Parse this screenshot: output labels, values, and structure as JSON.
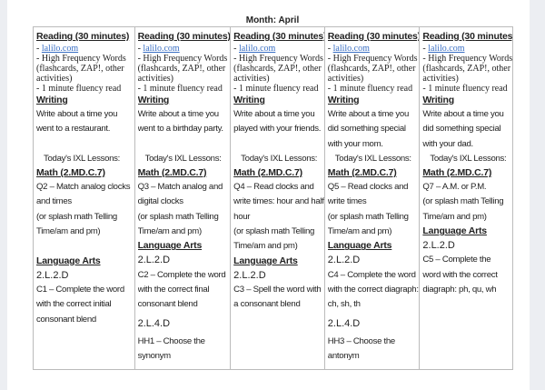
{
  "title": "Month: April",
  "columns": [
    {
      "blocks": [
        {
          "t": "Reading (30 minutes)",
          "c": "h"
        },
        {
          "t": "lalilo.com",
          "c": "link"
        },
        {
          "t": "-  High Frequency Words",
          "c": "serif"
        },
        {
          "t": "(flashcards, ZAP!, other",
          "c": "serif"
        },
        {
          "t": "activities)",
          "c": "serif"
        },
        {
          "t": "- 1 minute fluency read",
          "c": "serif"
        },
        {
          "t": "Writing",
          "c": "h"
        },
        {
          "t": "Write about a time you",
          "c": "hw"
        },
        {
          "t": "went to a restaurant.",
          "c": "hw"
        },
        {
          "t": "",
          "c": "blank"
        },
        {
          "t": "Today's IXL Lessons:",
          "c": "ixl"
        },
        {
          "t": "Math (2.MD.C.7)",
          "c": "h"
        },
        {
          "t": "Q2 – Match analog clocks",
          "c": "hw"
        },
        {
          "t": "and times",
          "c": "hw"
        },
        {
          "t": "(or splash math Telling",
          "c": "hw"
        },
        {
          "t": "Time/am and pm)",
          "c": "hw"
        },
        {
          "t": "",
          "c": "blank"
        },
        {
          "t": "Language Arts",
          "c": "h"
        },
        {
          "t": "2.L.2.D",
          "c": "code"
        },
        {
          "t": "C1 – Complete the word",
          "c": "hw"
        },
        {
          "t": "with the correct initial",
          "c": "hw"
        },
        {
          "t": "consonant blend",
          "c": "hw"
        }
      ]
    },
    {
      "blocks": [
        {
          "t": "Reading (30 minutes)",
          "c": "h"
        },
        {
          "t": "lalilo.com",
          "c": "link"
        },
        {
          "t": "-  High Frequency Words",
          "c": "serif"
        },
        {
          "t": "(flashcards, ZAP!, other",
          "c": "serif"
        },
        {
          "t": "activities)",
          "c": "serif"
        },
        {
          "t": "- 1 minute fluency read",
          "c": "serif"
        },
        {
          "t": "Writing",
          "c": "h"
        },
        {
          "t": "Write about a time you",
          "c": "hw"
        },
        {
          "t": "went to a birthday party.",
          "c": "hw"
        },
        {
          "t": "",
          "c": "blank"
        },
        {
          "t": "Today's IXL Lessons:",
          "c": "ixl"
        },
        {
          "t": "Math (2.MD.C.7)",
          "c": "h"
        },
        {
          "t": "Q3 – Match analog and",
          "c": "hw"
        },
        {
          "t": "digital clocks",
          "c": "hw"
        },
        {
          "t": "(or splash math Telling",
          "c": "hw"
        },
        {
          "t": "Time/am and pm)",
          "c": "hw"
        },
        {
          "t": "Language Arts",
          "c": "h"
        },
        {
          "t": "2.L.2.D",
          "c": "code"
        },
        {
          "t": "C2 – Complete the word",
          "c": "hw"
        },
        {
          "t": "with the correct final",
          "c": "hw"
        },
        {
          "t": "consonant blend",
          "c": "hw"
        },
        {
          "t": "2.L.4.D",
          "c": "codeg"
        },
        {
          "t": "HH1 – Choose the",
          "c": "hw"
        },
        {
          "t": "synonym",
          "c": "hw"
        }
      ]
    },
    {
      "blocks": [
        {
          "t": "Reading (30 minutes)",
          "c": "h"
        },
        {
          "t": "lalilo.com",
          "c": "link"
        },
        {
          "t": "-  High Frequency Words",
          "c": "serif"
        },
        {
          "t": "(flashcards, ZAP!, other",
          "c": "serif"
        },
        {
          "t": "activities)",
          "c": "serif"
        },
        {
          "t": "- 1 minute fluency read",
          "c": "serif"
        },
        {
          "t": "Writing",
          "c": "h"
        },
        {
          "t": "Write about a time you",
          "c": "hw"
        },
        {
          "t": "played with your friends.",
          "c": "hw"
        },
        {
          "t": "",
          "c": "blank"
        },
        {
          "t": "Today's IXL Lessons:",
          "c": "ixl"
        },
        {
          "t": "Math (2.MD.C.7)",
          "c": "h"
        },
        {
          "t": "Q4 – Read clocks and",
          "c": "hw"
        },
        {
          "t": "write times: hour and half",
          "c": "hw"
        },
        {
          "t": "hour",
          "c": "hw"
        },
        {
          "t": "(or splash math Telling",
          "c": "hw"
        },
        {
          "t": "Time/am and pm)",
          "c": "hw"
        },
        {
          "t": "Language Arts",
          "c": "h"
        },
        {
          "t": "2.L.2.D",
          "c": "code"
        },
        {
          "t": "C3 – Spell the word with",
          "c": "hw"
        },
        {
          "t": "a consonant blend",
          "c": "hw"
        }
      ]
    },
    {
      "blocks": [
        {
          "t": "Reading (30 minutes)",
          "c": "h"
        },
        {
          "t": "lalilo.com",
          "c": "link"
        },
        {
          "t": "-  High Frequency Words",
          "c": "serif"
        },
        {
          "t": "(flashcards, ZAP!, other",
          "c": "serif"
        },
        {
          "t": "activities)",
          "c": "serif"
        },
        {
          "t": "- 1 minute fluency read",
          "c": "serif"
        },
        {
          "t": "Writing",
          "c": "h"
        },
        {
          "t": "Write about a time you",
          "c": "hw"
        },
        {
          "t": "did something special",
          "c": "hw"
        },
        {
          "t": "with your mom.",
          "c": "hw"
        },
        {
          "t": "Today's IXL Lessons:",
          "c": "ixl"
        },
        {
          "t": "Math (2.MD.C.7)",
          "c": "h"
        },
        {
          "t": "Q5 – Read clocks and",
          "c": "hw"
        },
        {
          "t": "write times",
          "c": "hw"
        },
        {
          "t": "(or splash math Telling",
          "c": "hw"
        },
        {
          "t": "Time/am and pm)",
          "c": "hw"
        },
        {
          "t": "Language Arts",
          "c": "h"
        },
        {
          "t": "2.L.2.D",
          "c": "code"
        },
        {
          "t": "C4 – Complete the word",
          "c": "hw"
        },
        {
          "t": "with the correct diagraph:",
          "c": "hw"
        },
        {
          "t": "ch, sh, th",
          "c": "hw"
        },
        {
          "t": "2.L.4.D",
          "c": "codeg"
        },
        {
          "t": "HH3 – Choose the",
          "c": "hw"
        },
        {
          "t": "antonym",
          "c": "hw"
        }
      ]
    },
    {
      "blocks": [
        {
          "t": "Reading (30 minutes)",
          "c": "h"
        },
        {
          "t": "lalilo.com",
          "c": "link"
        },
        {
          "t": "-  High Frequency Words",
          "c": "serif"
        },
        {
          "t": "(flashcards, ZAP!, other",
          "c": "serif"
        },
        {
          "t": "activities)",
          "c": "serif"
        },
        {
          "t": "- 1 minute fluency read",
          "c": "serif"
        },
        {
          "t": "Writing",
          "c": "h"
        },
        {
          "t": "Write about a time you",
          "c": "hw"
        },
        {
          "t": "did something special",
          "c": "hw"
        },
        {
          "t": "with your dad.",
          "c": "hw"
        },
        {
          "t": "Today's IXL Lessons:",
          "c": "ixl"
        },
        {
          "t": "Math (2.MD.C.7)",
          "c": "h"
        },
        {
          "t": "Q7 – A.M. or P.M.",
          "c": "hw"
        },
        {
          "t": "(or splash math Telling",
          "c": "hw"
        },
        {
          "t": "Time/am and pm)",
          "c": "hw"
        },
        {
          "t": "Language Arts",
          "c": "h"
        },
        {
          "t": "2.L.2.D",
          "c": "code"
        },
        {
          "t": "C5 – Complete the",
          "c": "hw"
        },
        {
          "t": "word with the correct",
          "c": "hw"
        },
        {
          "t": "diagraph: ph, qu, wh",
          "c": "hw"
        }
      ]
    }
  ]
}
